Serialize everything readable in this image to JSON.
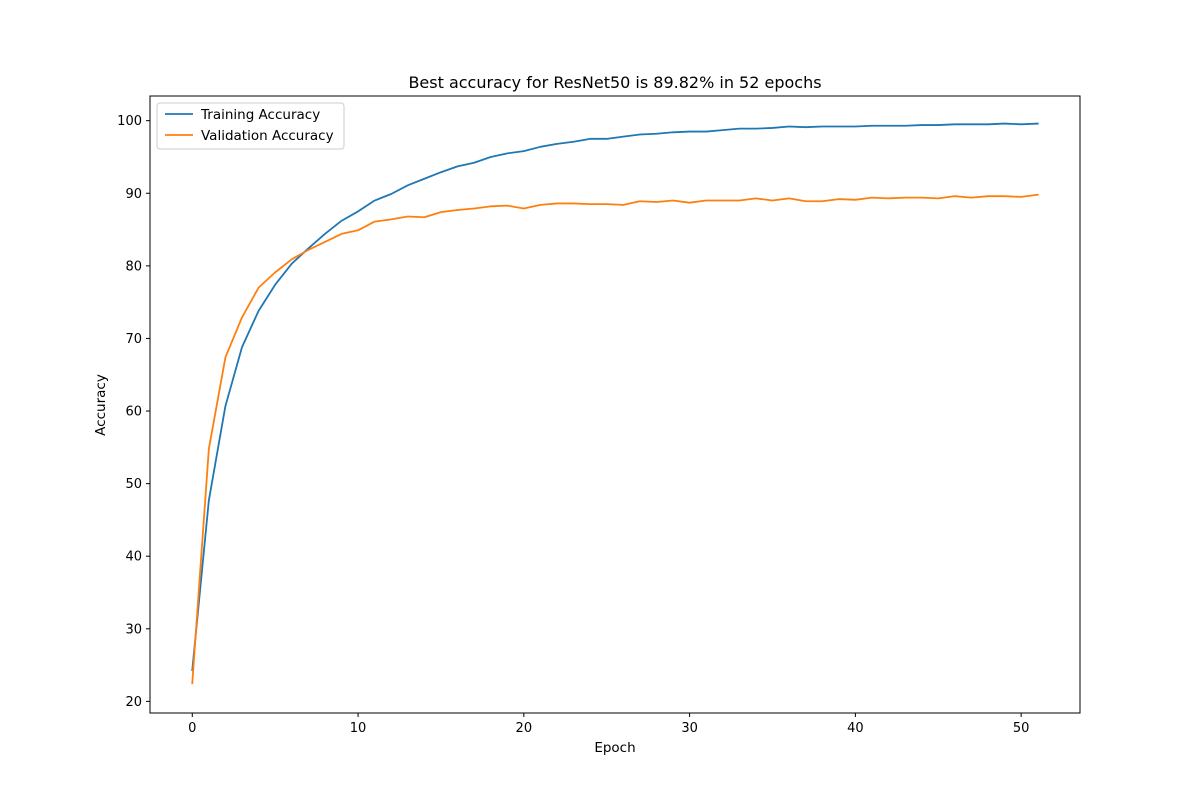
{
  "chart_data": {
    "type": "line",
    "title": "Best accuracy for ResNet50 is 89.82% in 52 epochs",
    "xlabel": "Epoch",
    "ylabel": "Accuracy",
    "xlim": [
      -2.55,
      53.55
    ],
    "ylim": [
      18.4,
      103.4
    ],
    "xticks": [
      0,
      10,
      20,
      30,
      40,
      50
    ],
    "yticks": [
      20,
      30,
      40,
      50,
      60,
      70,
      80,
      90,
      100
    ],
    "grid": false,
    "legend_position": "top-left",
    "x": [
      0,
      1,
      2,
      3,
      4,
      5,
      6,
      7,
      8,
      9,
      10,
      11,
      12,
      13,
      14,
      15,
      16,
      17,
      18,
      19,
      20,
      21,
      22,
      23,
      24,
      25,
      26,
      27,
      28,
      29,
      30,
      31,
      32,
      33,
      34,
      35,
      36,
      37,
      38,
      39,
      40,
      41,
      42,
      43,
      44,
      45,
      46,
      47,
      48,
      49,
      50,
      51
    ],
    "series": [
      {
        "name": "Training Accuracy",
        "color": "#1f77b4",
        "values": [
          24.3,
          47.7,
          60.7,
          68.8,
          73.8,
          77.4,
          80.3,
          82.4,
          84.4,
          86.2,
          87.5,
          89.0,
          89.9,
          91.1,
          92.0,
          92.9,
          93.7,
          94.2,
          95.0,
          95.5,
          95.8,
          96.4,
          96.8,
          97.1,
          97.5,
          97.5,
          97.8,
          98.1,
          98.2,
          98.4,
          98.5,
          98.5,
          98.7,
          98.9,
          98.9,
          99.0,
          99.2,
          99.1,
          99.2,
          99.2,
          99.2,
          99.3,
          99.3,
          99.3,
          99.4,
          99.4,
          99.5,
          99.5,
          99.5,
          99.6,
          99.5,
          99.6
        ]
      },
      {
        "name": "Validation Accuracy",
        "color": "#ff7f0e",
        "values": [
          22.5,
          54.8,
          67.4,
          72.9,
          77.0,
          79.1,
          80.9,
          82.2,
          83.3,
          84.4,
          84.9,
          86.1,
          86.4,
          86.8,
          86.7,
          87.4,
          87.7,
          87.9,
          88.2,
          88.3,
          87.9,
          88.4,
          88.6,
          88.6,
          88.5,
          88.5,
          88.4,
          88.9,
          88.8,
          89.0,
          88.7,
          89.0,
          89.0,
          89.0,
          89.3,
          89.0,
          89.3,
          88.9,
          88.9,
          89.2,
          89.1,
          89.4,
          89.3,
          89.4,
          89.4,
          89.3,
          89.6,
          89.4,
          89.6,
          89.6,
          89.5,
          89.8
        ]
      }
    ]
  }
}
